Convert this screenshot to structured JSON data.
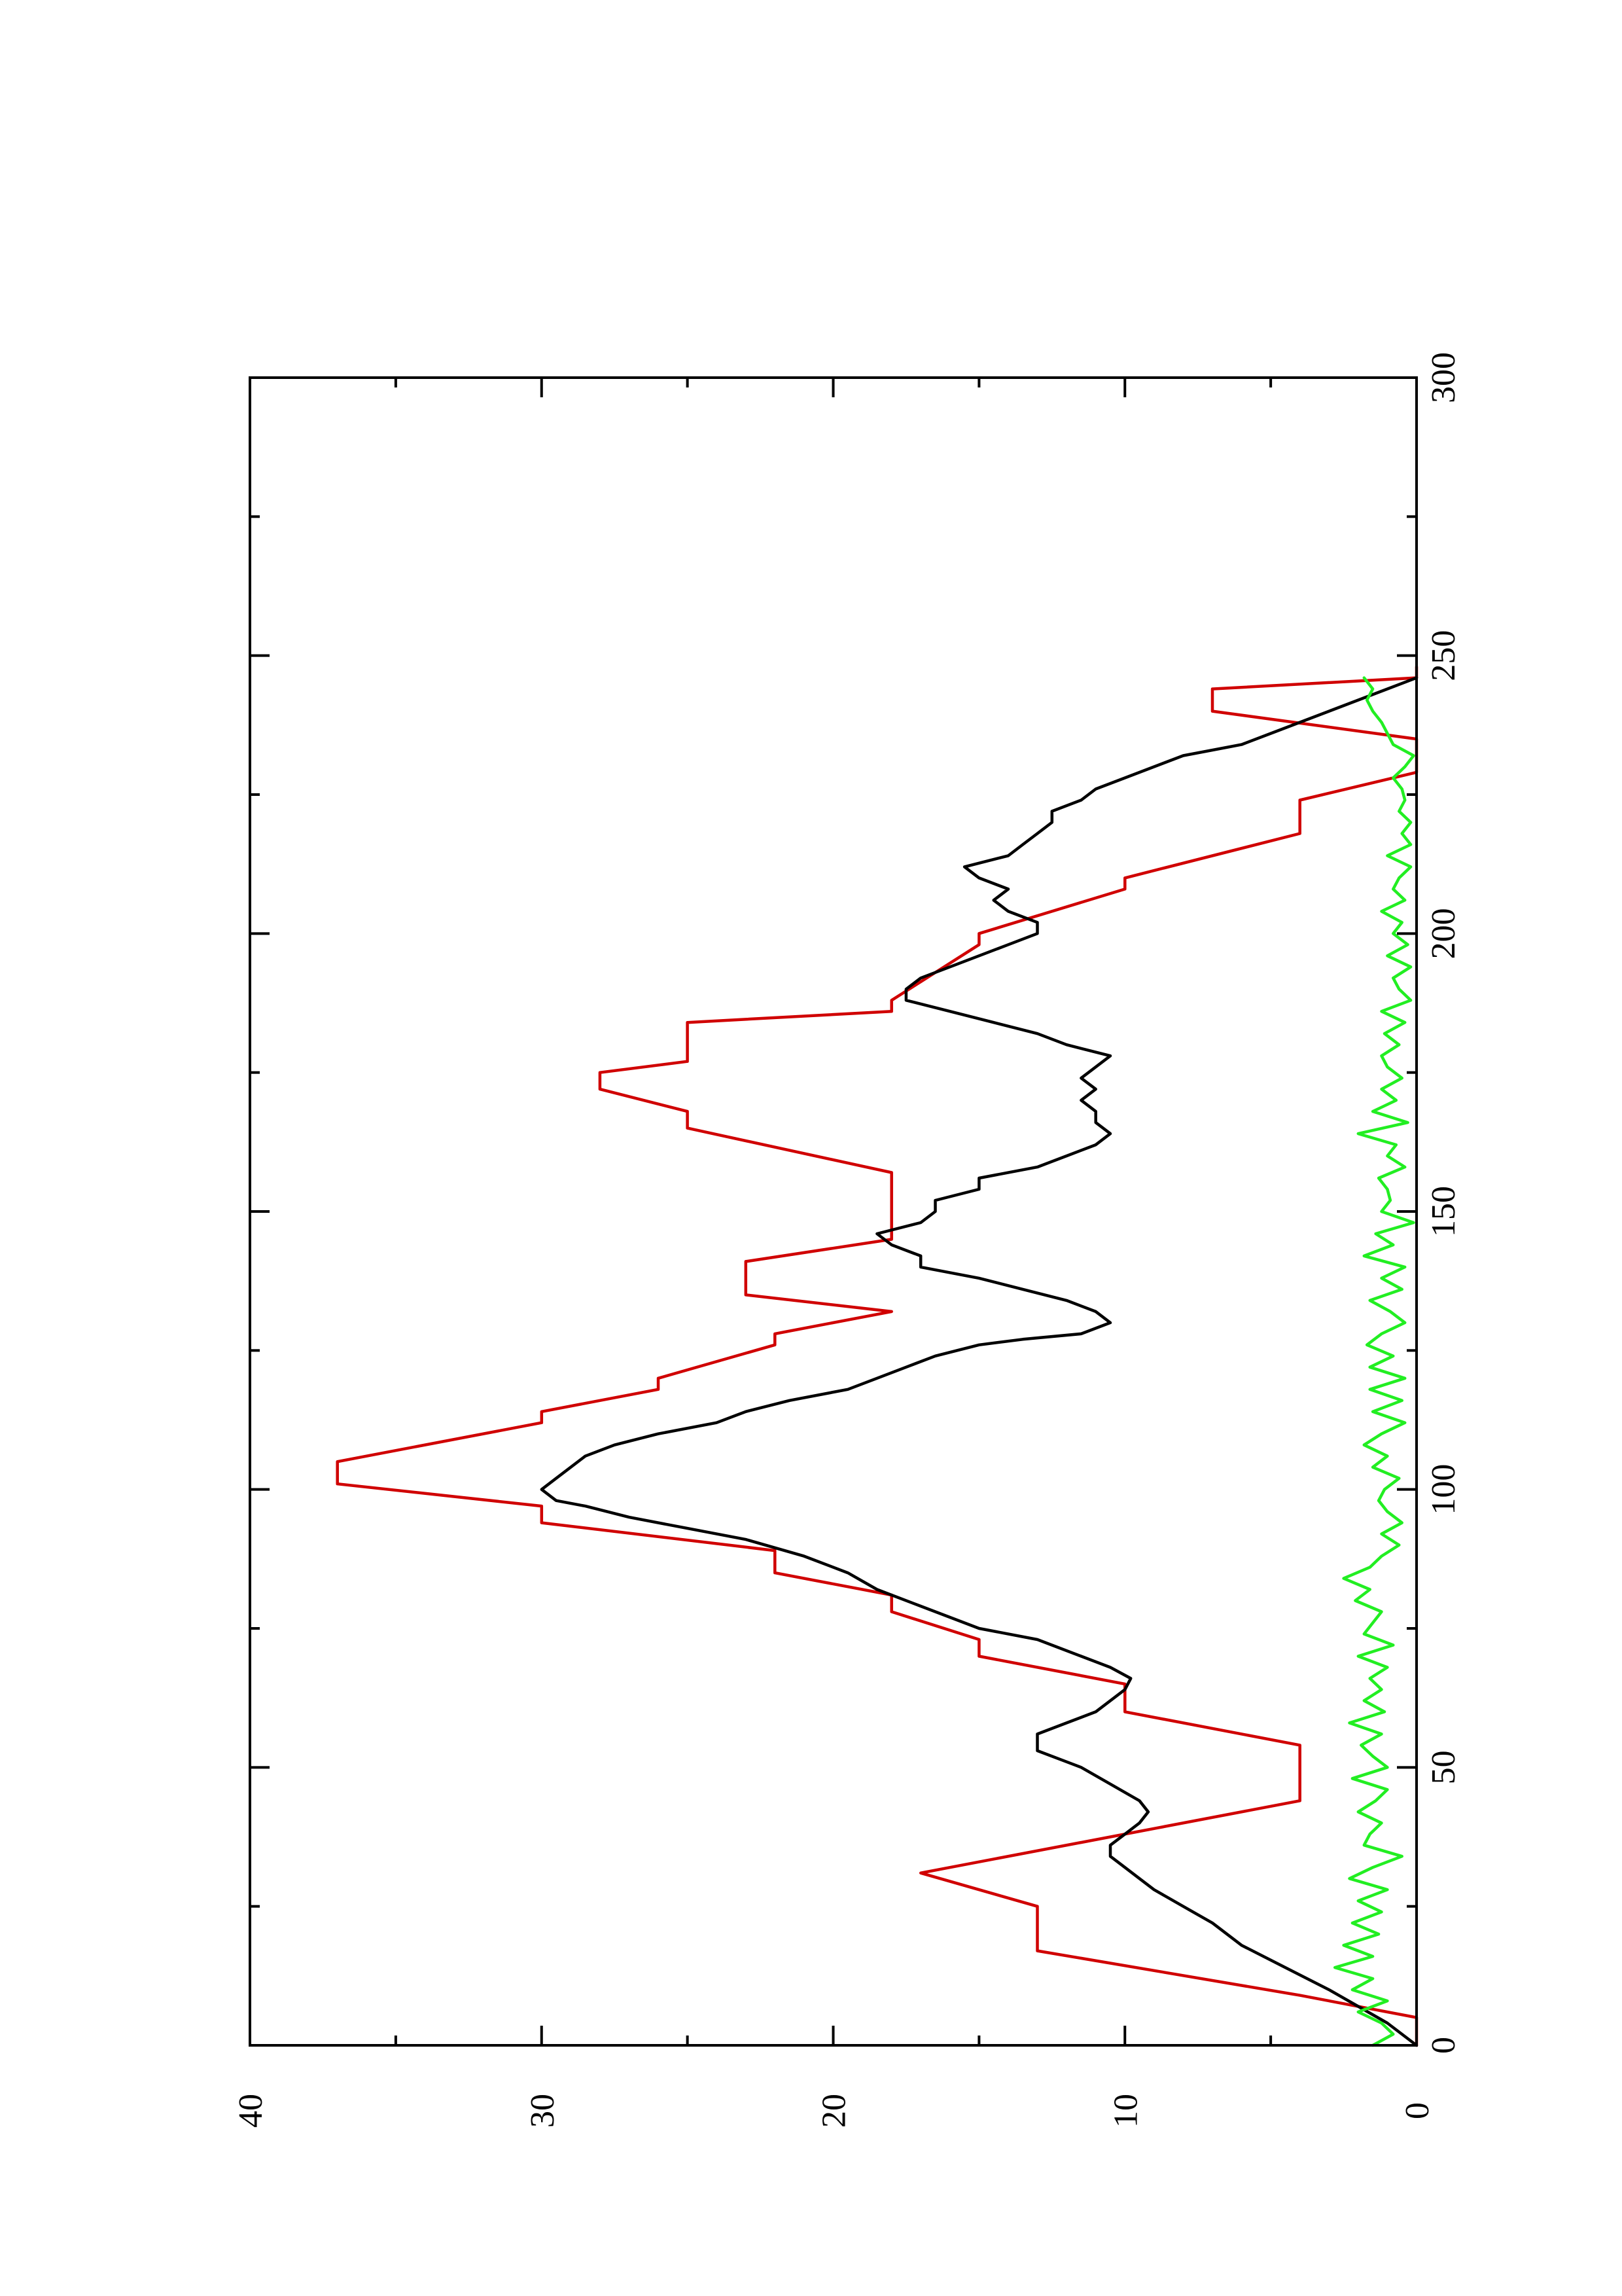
{
  "chart_data": {
    "type": "line",
    "orientation": "rotated 90 degrees counter-clockwise",
    "title": "",
    "xlabel": "",
    "ylabel": "",
    "xlim": [
      0,
      300
    ],
    "ylim": [
      0,
      40
    ],
    "x_ticks": [
      0,
      50,
      100,
      150,
      200,
      250,
      300
    ],
    "y_ticks": [
      0,
      10,
      20,
      30,
      40
    ],
    "grid": false,
    "legend": "none",
    "series": [
      {
        "color": "#d00000",
        "points": [
          [
            0,
            0
          ],
          [
            5,
            0
          ],
          [
            8,
            3
          ],
          [
            9,
            4
          ],
          [
            17,
            13
          ],
          [
            25,
            13
          ],
          [
            31,
            17
          ],
          [
            39,
            9
          ],
          [
            44,
            4
          ],
          [
            54,
            4
          ],
          [
            60,
            10
          ],
          [
            65,
            10
          ],
          [
            70,
            15
          ],
          [
            73,
            15
          ],
          [
            78,
            18
          ],
          [
            81,
            18
          ],
          [
            85,
            22
          ],
          [
            89,
            22
          ],
          [
            94,
            30
          ],
          [
            97,
            30
          ],
          [
            101,
            37
          ],
          [
            105,
            37
          ],
          [
            112,
            30
          ],
          [
            114,
            30
          ],
          [
            118,
            26
          ],
          [
            120,
            26
          ],
          [
            126,
            22
          ],
          [
            128,
            22
          ],
          [
            132,
            18
          ],
          [
            135,
            23
          ],
          [
            141,
            23
          ],
          [
            145,
            18
          ],
          [
            157,
            18
          ],
          [
            165,
            25
          ],
          [
            168,
            25
          ],
          [
            172,
            28
          ],
          [
            175,
            28
          ],
          [
            177,
            25
          ],
          [
            184,
            25
          ],
          [
            186,
            18
          ],
          [
            188,
            18
          ],
          [
            198,
            15
          ],
          [
            200,
            15
          ],
          [
            208,
            10
          ],
          [
            210,
            10
          ],
          [
            218,
            4
          ],
          [
            224,
            4
          ],
          [
            229,
            0
          ],
          [
            235,
            0
          ],
          [
            240,
            7
          ],
          [
            244,
            7
          ],
          [
            246,
            0
          ],
          [
            248,
            0
          ]
        ]
      },
      {
        "color": "#000000",
        "points": [
          [
            0,
            0
          ],
          [
            4,
            1
          ],
          [
            7,
            2
          ],
          [
            10,
            3
          ],
          [
            14,
            4.5
          ],
          [
            18,
            6
          ],
          [
            22,
            7
          ],
          [
            25,
            8
          ],
          [
            28,
            9
          ],
          [
            30,
            9.5
          ],
          [
            32,
            10
          ],
          [
            34,
            10.5
          ],
          [
            36,
            10.5
          ],
          [
            38,
            10
          ],
          [
            40,
            9.5
          ],
          [
            42,
            9.2
          ],
          [
            44,
            9.5
          ],
          [
            47,
            10.5
          ],
          [
            50,
            11.5
          ],
          [
            51,
            12
          ],
          [
            53,
            13
          ],
          [
            56,
            13
          ],
          [
            58,
            12
          ],
          [
            60,
            11
          ],
          [
            62,
            10.5
          ],
          [
            64,
            10
          ],
          [
            66,
            9.8
          ],
          [
            68,
            10.5
          ],
          [
            70,
            11.5
          ],
          [
            73,
            13
          ],
          [
            75,
            15
          ],
          [
            77,
            16
          ],
          [
            79,
            17
          ],
          [
            82,
            18.5
          ],
          [
            85,
            19.5
          ],
          [
            88,
            21
          ],
          [
            91,
            23
          ],
          [
            93,
            25
          ],
          [
            95,
            27
          ],
          [
            97,
            28.5
          ],
          [
            98,
            29.5
          ],
          [
            100,
            30
          ],
          [
            102,
            29.5
          ],
          [
            104,
            29
          ],
          [
            106,
            28.5
          ],
          [
            108,
            27.5
          ],
          [
            110,
            26
          ],
          [
            112,
            24
          ],
          [
            114,
            23
          ],
          [
            116,
            21.5
          ],
          [
            118,
            19.5
          ],
          [
            120,
            18.5
          ],
          [
            122,
            17.5
          ],
          [
            124,
            16.5
          ],
          [
            126,
            15
          ],
          [
            127,
            13.5
          ],
          [
            128,
            11.5
          ],
          [
            130,
            10.5
          ],
          [
            132,
            11
          ],
          [
            134,
            12
          ],
          [
            136,
            13.5
          ],
          [
            138,
            15
          ],
          [
            140,
            17
          ],
          [
            142,
            17
          ],
          [
            144,
            18
          ],
          [
            146,
            18.5
          ],
          [
            148,
            17
          ],
          [
            150,
            16.5
          ],
          [
            152,
            16.5
          ],
          [
            154,
            15
          ],
          [
            156,
            15
          ],
          [
            158,
            13
          ],
          [
            160,
            12
          ],
          [
            162,
            11
          ],
          [
            164,
            10.5
          ],
          [
            166,
            11
          ],
          [
            168,
            11
          ],
          [
            170,
            11.5
          ],
          [
            172,
            11
          ],
          [
            174,
            11.5
          ],
          [
            176,
            11
          ],
          [
            178,
            10.5
          ],
          [
            180,
            12
          ],
          [
            182,
            13
          ],
          [
            184,
            14.5
          ],
          [
            186,
            16
          ],
          [
            188,
            17.5
          ],
          [
            190,
            17.5
          ],
          [
            192,
            17
          ],
          [
            194,
            16
          ],
          [
            196,
            15
          ],
          [
            198,
            14
          ],
          [
            200,
            13
          ],
          [
            202,
            13
          ],
          [
            204,
            14
          ],
          [
            206,
            14.5
          ],
          [
            208,
            14
          ],
          [
            210,
            15
          ],
          [
            212,
            15.5
          ],
          [
            214,
            14
          ],
          [
            216,
            13.5
          ],
          [
            218,
            13
          ],
          [
            220,
            12.5
          ],
          [
            222,
            12.5
          ],
          [
            224,
            11.5
          ],
          [
            226,
            11
          ],
          [
            228,
            10
          ],
          [
            230,
            9
          ],
          [
            232,
            8
          ],
          [
            234,
            6
          ],
          [
            236,
            5
          ],
          [
            238,
            4
          ],
          [
            240,
            3
          ],
          [
            242,
            2
          ],
          [
            244,
            1
          ],
          [
            246,
            0
          ]
        ]
      },
      {
        "color": "#22ee22",
        "points": [
          [
            0,
            1.5
          ],
          [
            2,
            0.8
          ],
          [
            4,
            1.2
          ],
          [
            6,
            2.0
          ],
          [
            8,
            1.0
          ],
          [
            10,
            2.2
          ],
          [
            12,
            1.5
          ],
          [
            14,
            2.8
          ],
          [
            16,
            1.5
          ],
          [
            18,
            2.5
          ],
          [
            20,
            1.3
          ],
          [
            22,
            2.2
          ],
          [
            24,
            1.2
          ],
          [
            26,
            2.0
          ],
          [
            28,
            1.0
          ],
          [
            30,
            2.3
          ],
          [
            32,
            1.5
          ],
          [
            34,
            0.5
          ],
          [
            36,
            1.8
          ],
          [
            38,
            1.6
          ],
          [
            40,
            1.2
          ],
          [
            42,
            2.0
          ],
          [
            44,
            1.4
          ],
          [
            46,
            1.0
          ],
          [
            48,
            2.2
          ],
          [
            50,
            1.0
          ],
          [
            52,
            1.5
          ],
          [
            54,
            1.9
          ],
          [
            56,
            1.2
          ],
          [
            58,
            2.3
          ],
          [
            60,
            1.1
          ],
          [
            62,
            1.8
          ],
          [
            64,
            1.2
          ],
          [
            66,
            1.6
          ],
          [
            68,
            1.0
          ],
          [
            70,
            2.0
          ],
          [
            72,
            0.8
          ],
          [
            74,
            1.8
          ],
          [
            76,
            1.5
          ],
          [
            78,
            1.2
          ],
          [
            80,
            2.1
          ],
          [
            82,
            1.6
          ],
          [
            84,
            2.5
          ],
          [
            86,
            1.6
          ],
          [
            88,
            1.2
          ],
          [
            90,
            0.6
          ],
          [
            92,
            1.2
          ],
          [
            94,
            0.5
          ],
          [
            96,
            1.0
          ],
          [
            98,
            1.3
          ],
          [
            100,
            1.1
          ],
          [
            102,
            0.6
          ],
          [
            104,
            1.5
          ],
          [
            106,
            1.0
          ],
          [
            108,
            1.8
          ],
          [
            110,
            1.2
          ],
          [
            112,
            0.4
          ],
          [
            114,
            1.5
          ],
          [
            116,
            0.5
          ],
          [
            118,
            1.6
          ],
          [
            120,
            0.4
          ],
          [
            122,
            1.6
          ],
          [
            124,
            0.8
          ],
          [
            126,
            1.7
          ],
          [
            128,
            1.2
          ],
          [
            130,
            0.4
          ],
          [
            132,
            0.9
          ],
          [
            134,
            1.6
          ],
          [
            136,
            0.5
          ],
          [
            138,
            1.2
          ],
          [
            140,
            0.4
          ],
          [
            142,
            1.8
          ],
          [
            144,
            0.8
          ],
          [
            146,
            1.4
          ],
          [
            148,
            0.1
          ],
          [
            150,
            1.2
          ],
          [
            152,
            0.9
          ],
          [
            154,
            1.0
          ],
          [
            156,
            1.3
          ],
          [
            158,
            0.4
          ],
          [
            160,
            1.0
          ],
          [
            162,
            0.7
          ],
          [
            164,
            2.0
          ],
          [
            166,
            0.3
          ],
          [
            168,
            1.5
          ],
          [
            170,
            0.7
          ],
          [
            172,
            1.2
          ],
          [
            174,
            0.5
          ],
          [
            176,
            1.0
          ],
          [
            178,
            1.2
          ],
          [
            180,
            0.6
          ],
          [
            182,
            1.1
          ],
          [
            184,
            0.4
          ],
          [
            186,
            1.2
          ],
          [
            188,
            0.2
          ],
          [
            190,
            0.6
          ],
          [
            192,
            0.8
          ],
          [
            194,
            0.2
          ],
          [
            196,
            1.0
          ],
          [
            198,
            0.3
          ],
          [
            200,
            0.8
          ],
          [
            202,
            0.5
          ],
          [
            204,
            1.2
          ],
          [
            206,
            0.4
          ],
          [
            208,
            0.8
          ],
          [
            210,
            0.6
          ],
          [
            212,
            0.2
          ],
          [
            214,
            1.0
          ],
          [
            216,
            0.2
          ],
          [
            218,
            0.5
          ],
          [
            220,
            0.2
          ],
          [
            222,
            0.6
          ],
          [
            224,
            0.4
          ],
          [
            226,
            0.5
          ],
          [
            228,
            0.8
          ],
          [
            230,
            0.4
          ],
          [
            232,
            0.1
          ],
          [
            234,
            0.8
          ],
          [
            236,
            1.0
          ],
          [
            238,
            1.2
          ],
          [
            240,
            1.5
          ],
          [
            242,
            1.7
          ],
          [
            244,
            1.5
          ],
          [
            246,
            1.8
          ]
        ]
      }
    ]
  }
}
